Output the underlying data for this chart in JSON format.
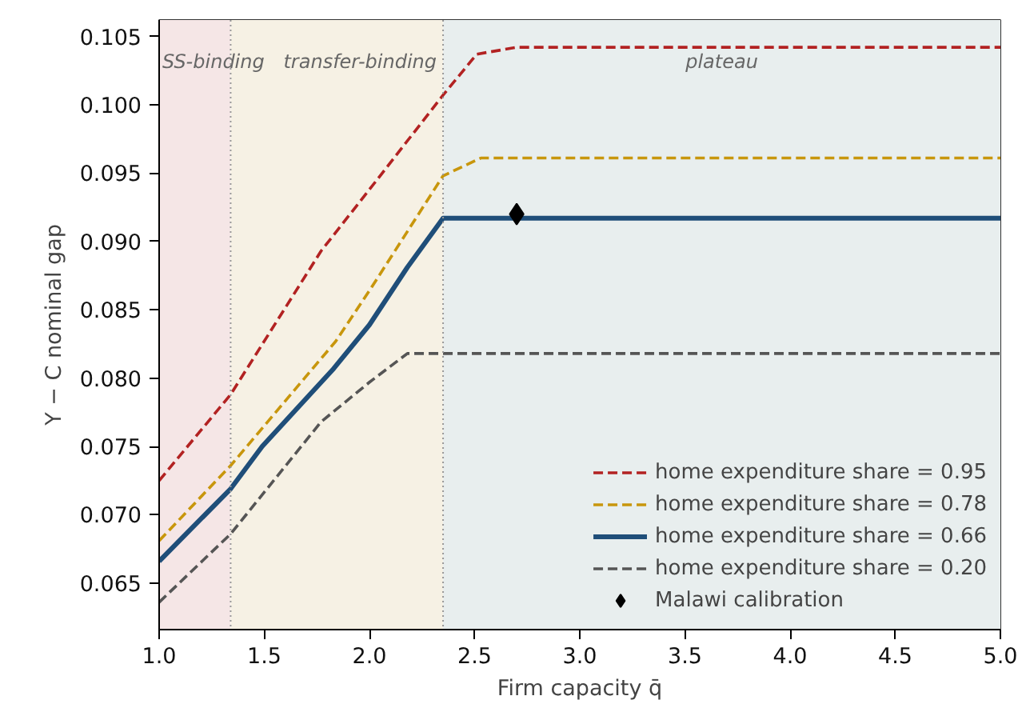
{
  "chart_data": {
    "type": "line",
    "xlabel": "Firm capacity q̄",
    "ylabel": "Y − C nominal gap",
    "xlim": [
      1.0,
      5.0
    ],
    "ylim": [
      0.0616,
      0.1062
    ],
    "xticks": [
      {
        "value": 1.0,
        "label": "1.0"
      },
      {
        "value": 1.5,
        "label": "1.5"
      },
      {
        "value": 2.0,
        "label": "2.0"
      },
      {
        "value": 2.5,
        "label": "2.5"
      },
      {
        "value": 3.0,
        "label": "3.0"
      },
      {
        "value": 3.5,
        "label": "3.5"
      },
      {
        "value": 4.0,
        "label": "4.0"
      },
      {
        "value": 4.5,
        "label": "4.5"
      },
      {
        "value": 5.0,
        "label": "5.0"
      }
    ],
    "yticks": [
      {
        "value": 0.065,
        "label": "0.065"
      },
      {
        "value": 0.07,
        "label": "0.070"
      },
      {
        "value": 0.075,
        "label": "0.075"
      },
      {
        "value": 0.08,
        "label": "0.080"
      },
      {
        "value": 0.085,
        "label": "0.085"
      },
      {
        "value": 0.09,
        "label": "0.090"
      },
      {
        "value": 0.095,
        "label": "0.095"
      },
      {
        "value": 0.1,
        "label": "0.100"
      },
      {
        "value": 0.105,
        "label": "0.105"
      }
    ],
    "grid": false,
    "legend": "bottom right",
    "bands": [
      {
        "axis": "x",
        "from": 1.0,
        "to": 1.34,
        "label": "SS-binding",
        "color": "#f5e6e6"
      },
      {
        "axis": "x",
        "from": 1.34,
        "to": 2.35,
        "label": "transfer-binding",
        "color": "#f6f1e4"
      },
      {
        "axis": "x",
        "from": 2.35,
        "to": 5.0,
        "label": "plateau",
        "color": "#e8eeee"
      }
    ],
    "ref_lines": [
      {
        "axis": "x",
        "value": 1.34,
        "color": "#999999",
        "line_style": "dotted"
      },
      {
        "axis": "x",
        "value": 2.35,
        "color": "#999999",
        "line_style": "dotted"
      }
    ],
    "series": [
      {
        "name": "home expenditure share = 0.95",
        "color": "#b22222",
        "line_style": "dashed",
        "x": [
          1.0,
          1.34,
          1.77,
          2.0,
          2.35,
          2.51,
          2.7,
          5.0
        ],
        "values": [
          0.0725,
          0.0788,
          0.0893,
          0.0938,
          0.1007,
          0.1037,
          0.1042,
          0.1042
        ]
      },
      {
        "name": "home expenditure share = 0.78",
        "color": "#c8960c",
        "line_style": "dashed",
        "x": [
          1.0,
          1.34,
          1.84,
          2.0,
          2.35,
          2.53,
          5.0
        ],
        "values": [
          0.0681,
          0.0736,
          0.0827,
          0.0864,
          0.0948,
          0.0961,
          0.0961
        ]
      },
      {
        "name": "home expenditure share = 0.66",
        "color": "#1f4e79",
        "line_style": "solid",
        "x": [
          1.0,
          1.34,
          1.49,
          1.83,
          2.0,
          2.18,
          2.35,
          5.0
        ],
        "values": [
          0.0666,
          0.0719,
          0.075,
          0.0807,
          0.0839,
          0.0881,
          0.0917,
          0.0917
        ]
      },
      {
        "name": "home expenditure share = 0.20",
        "color": "#555555",
        "line_style": "dashed",
        "x": [
          1.0,
          1.34,
          1.77,
          2.0,
          2.18,
          5.0
        ],
        "values": [
          0.0636,
          0.0686,
          0.0768,
          0.0797,
          0.0818,
          0.0818
        ]
      },
      {
        "name": "Malawi calibration",
        "type": "scatter",
        "marker": "diamond",
        "color": "#000000",
        "x": [
          2.7
        ],
        "values": [
          0.092
        ]
      }
    ]
  }
}
